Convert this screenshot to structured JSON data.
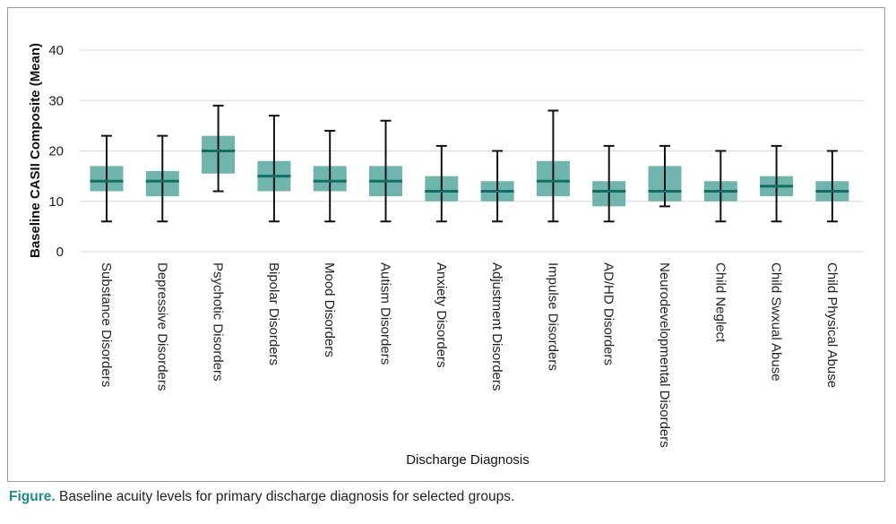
{
  "colors": {
    "box_fill": "#6fb5ae",
    "median": "#116e65",
    "whisker": "#111111",
    "grid": "#d9d9d9",
    "caption_accent": "#1a8f86"
  },
  "chart_data": {
    "type": "box",
    "title": "",
    "xlabel": "Discharge Diagnosis",
    "ylabel": "Baseline CASII Composite (Mean)",
    "ylim": [
      0,
      40
    ],
    "yticks": [
      "0",
      "10",
      "20",
      "30",
      "40"
    ],
    "grid": true,
    "categories": [
      "Substance Disorders",
      "Depressive Disorders",
      "Psychotic Disorders",
      "Bipolar Disorders",
      "Mood Disorders",
      "Autism Disorders",
      "Anxiety Disorders",
      "Adjustment Disorders",
      "Impulse Disorders",
      "AD/HD Disorders",
      "Neurodevelopmental Disorders",
      "Child Neglect",
      "Child Swxual Abuse",
      "Child Physical Abuse"
    ],
    "series": [
      {
        "min": [
          6,
          6,
          12,
          6,
          6,
          6,
          6,
          6,
          6,
          6,
          9,
          6,
          6,
          6
        ],
        "q1": [
          12,
          11,
          15.5,
          12,
          12,
          11,
          10,
          10,
          11,
          9,
          10,
          10,
          11,
          10
        ],
        "median": [
          14,
          14,
          20,
          15,
          14,
          14,
          12,
          12,
          14,
          12,
          12,
          12,
          13,
          12
        ],
        "q3": [
          17,
          16,
          23,
          18,
          17,
          17,
          15,
          14,
          18,
          14,
          17,
          14,
          15,
          14
        ],
        "max": [
          23,
          23,
          29,
          27,
          24,
          26,
          21,
          20,
          28,
          21,
          21,
          20,
          21,
          20
        ]
      }
    ]
  },
  "caption": {
    "lead": "Figure.",
    "text": " Baseline acuity levels for primary discharge diagnosis for selected groups."
  }
}
